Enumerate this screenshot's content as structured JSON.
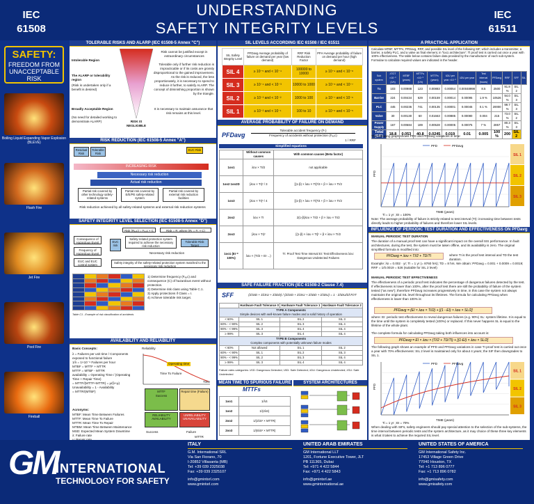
{
  "header": {
    "left": "IEC\n61508",
    "right": "IEC\n61511",
    "title1": "UNDERSTANDING",
    "title2": "SAFETY INTEGRITY LEVELS"
  },
  "safety": {
    "a": "SAFETY:",
    "b": "FREEDOM FROM UNACCEPTABLE RISK"
  },
  "photos": [
    {
      "caption": "Boiling Liquid Expanding Vapor Explosion (BLEVE)",
      "color": "#c84a10"
    },
    {
      "caption": "Flash Fire",
      "color": "#d2691e"
    },
    {
      "caption": "Jet Fire",
      "color": "#e08a20"
    },
    {
      "caption": "Pool Fire",
      "color": "#b84410"
    },
    {
      "caption": "Fireball",
      "color": "#e86a10"
    }
  ],
  "col1": {
    "alarp_title": "TOLERABLE RISKS AND ALARP (IEC 61508-5 Annex \"C\")",
    "intolerable": "Intolerable Region",
    "intolerable_txt": "Risk cannot be justified except in extraordinary circumstances",
    "alarp": "The ALARP or tolerability region",
    "alarp_sub": "(Risk is undertaken only if a benefit is desired)",
    "alarp_txt": "Tolerable only if further risk reduction is impracticable or if its costs are grossly disproportional to the gained improvement. As the risk is reduced, the less proportionately, it is necessary to spend to reduce it further, to satisfy ALARP. The concept of diminishing proportion is shown by the triangle.",
    "broad": "Broadly Acceptable Region",
    "broad_sub": "(No need for detailed working to demonstrate ALARP)",
    "broad_txt": "It is necessary to maintain assurance that risk remains at this level.",
    "negligible": "RISK IS NEGLIGIBLE",
    "rr_title": "RISK REDUCTION (IEC 61508-5 Annex \"A\")",
    "rr_residual": "Residual Risk",
    "rr_tolerable": "Tolerable Risk",
    "rr_euc": "EUC Risk",
    "rr_increasing": "INCREASING RISK",
    "rr_necessary": "Necessary risk reduction",
    "rr_actual": "Actual risk reduction",
    "rr_p1": "Partial risk covered by other technology safety-related systems",
    "rr_p2": "Partial risk covered by E/E/PE safety-related system",
    "rr_p3": "Partial risk covered by external risk reduction facilities",
    "rr_all": "Risk reduction achieved by all safety-related systems and external risk reduction systems",
    "sil_title": "SAFETY INTEGRITY LEVEL SELECTION (IEC 61508-5 Annex \"D\")",
    "sil_f1": "Risk (Rₑᵤc) = Fₑᵤc × C",
    "sil_f2": "Risk = R, where (Rₜ = Fₜ × C)",
    "sil_cons": "Consequence of Hazardous Event",
    "sil_freq": "Frequency of Hazardous Event",
    "sil_euc": "EUC risk",
    "sil_tol": "Tolerable Risk Target",
    "sil_prot": "Safety-related protection system required to achieve the necessary risk reduction",
    "sil_nec": "Necessary risk reduction",
    "sil_cs": "EUC and EUC control system",
    "sil_note": "Safety integrity of the safety-related protection system matched to the necessary risk reduction",
    "sil_steps": [
      "1) Determine frequency (Fₑᵤc) and consequence (C) of hazardous event without protection.",
      "2) Determine risk class using Table C.1.",
      "3) Apply protections if Class = I.",
      "4) Achieve tolerable risk target."
    ],
    "sil_table_note": "Table C1 - Example of risk classification of accidents",
    "avail_title": "AVAILABILITY AND RELIABILITY",
    "avail_basic": "Basic Concepts:",
    "avail_lines": [
      "λ = Failures per unit time / Components exposed to functional failure",
      "1/λ = 1×10⁻⁹ Failures per hour",
      "MTBF = MTTF + MTTR",
      "MTTF = MTBF - MTTR",
      "availability = Operating Time / (Operating Time + Repair Time)",
      "= MTTF/(MTTF+MTTR) = μ/(λ+μ)",
      "Unavailability = 1 - Availability",
      "= MTTR/(MTBF)"
    ],
    "acronyms_title": "Acronyms:",
    "acronyms": [
      "MTBF: Mean Time Between Failures",
      "MTTF: Mean Time To Failure",
      "MTTR: Mean Time To Repair",
      "MTBM: Mean Time Between Maintenance",
      "MSD: Expected Mean System Downtime",
      "λ: Failure rate",
      "μ: Repair rate"
    ],
    "rel_label": "Reliability",
    "rel_optime": "Operating time",
    "rel_tf": "Time To Failure",
    "rel_time": "Time",
    "rel_success": "Success",
    "rel_fail": "Failure",
    "rel_mttf": "MTTF",
    "rel_mttr": "MTTR",
    "rel_avail": "RELIABILITY AVAILABILITY",
    "rel_unrel": "UNRELIABILITY UNAVAILABILITY",
    "rel_repair": "Repair time (Failure)"
  },
  "col2": {
    "silt_title": "SIL LEVELS ACCORDING IEC 61508 / IEC 61511",
    "silt_head": [
      "SIL Safety Integrity Level",
      "PFDavg Average probability of failure on demand per year (low demand)",
      "RRF Risk Reduction Factor",
      "PFH Average probability of failure on demand per hour (high demand)"
    ],
    "silt_rows": [
      [
        "SIL 4",
        "≥ 10⁻⁵ and < 10⁻⁴",
        "100000 to 10000",
        "≥ 10⁻⁹ and < 10⁻⁸"
      ],
      [
        "SIL 3",
        "≥ 10⁻⁴ and < 10⁻³",
        "10000 to 1000",
        "≥ 10⁻⁸ and < 10⁻⁷"
      ],
      [
        "SIL 2",
        "≥ 10⁻³ and < 10⁻²",
        "1000 to 100",
        "≥ 10⁻⁷ and < 10⁻⁶"
      ],
      [
        "SIL 1",
        "≥ 10⁻² and < 10⁻¹",
        "100 to 10",
        "≥ 10⁻⁶ and < 10⁻⁵"
      ]
    ],
    "pfd_title": "AVERAGE PROBABILITY OF FAILURE ON DEMAND",
    "pfd_label": "PFDavg",
    "pfd_num": "Tolerable accident frequency (Fₜ)",
    "pfd_den": "Frequency of accidents without protection (Fₑᵤc)",
    "pfd_rrf": "1 / RRF",
    "pfd_simp": "Simplified equations",
    "pfd_h1": "Without common causes",
    "pfd_h2": "With common causes (Beta factor)",
    "pfd_rows": [
      [
        "1oo1",
        "λᴅᴜ × TI/2",
        "not applicable"
      ],
      [
        "1oo2 1oo2D",
        "(λᴅᴜ × TI)² / 3",
        "[(1-β) × λᴅᴜ × TI]²/3 + β × λᴅᴜ × TI/2"
      ],
      [
        "1oo3",
        "(λᴅᴜ × TI)³ / 4",
        "[(1-β) × λᴅᴜ × TI]³/4 + β × λᴅᴜ × TI/2"
      ],
      [
        "2oo2",
        "λᴅᴜ × TI",
        "2(1-β)λᴅᴜ × TI/2 + β × λᴅᴜ × TI/2"
      ],
      [
        "2oo3",
        "(λᴅᴜ × TI)²",
        "[(1-β) × λᴅᴜ × TI]² + β × λᴅᴜ × TI/2"
      ],
      [
        "1oo1 (EI = 100%)",
        "λᴅᴜ × (TI/2 + EI·...)",
        "TI: Proof Test Time Interval  EI: Test Effectiveness  λᴅᴜ: Dangerous Undetected Failures"
      ]
    ],
    "sff_title": "SAFE FAILURE FRACTION (IEC 61508-2 Clause 7.4)",
    "sff_label": "SFF",
    "sff_formula": "(ΣλSD + ΣλSU + ΣλDD) / (ΣλSD + ΣλSU + ΣλDD + ΣλDU) = 1 - ΣλDU/ΣλTOT",
    "sff_hdr": [
      "",
      "Hardware Fault Tolerance 0",
      "Hardware Fault Tolerance 1",
      "Hardware Fault Tolerance 2"
    ],
    "sff_typeA": "TYPE A Components",
    "sff_typeA_sub": "Simple devices with well-known failure modes and a solid history of operation",
    "sff_A": [
      [
        "< 60%",
        "SIL 1",
        "SIL 2",
        "SIL 3"
      ],
      [
        "60% - < 90%",
        "SIL 2",
        "SIL 3",
        "SIL 4"
      ],
      [
        "90% - < 99%",
        "SIL 3",
        "SIL 4",
        "SIL 4"
      ],
      [
        "≥ 99%",
        "SIL 3",
        "SIL 4",
        "SIL 4"
      ]
    ],
    "sff_typeB": "TYPE B Components",
    "sff_typeB_sub": "Complex components with potentially unknown failure modes",
    "sff_B": [
      [
        "< 60%",
        "Not allowed",
        "SIL 1",
        "SIL 2"
      ],
      [
        "60% - < 90%",
        "SIL 1",
        "SIL 2",
        "SIL 3"
      ],
      [
        "90% - < 99%",
        "SIL 2",
        "SIL 3",
        "SIL 4"
      ],
      [
        "≥ 99%",
        "SIL 3",
        "SIL 4",
        "SIL 4"
      ]
    ],
    "sff_cats": "Failure rates categories:  λSD: Dangerous Detected; λSD: Safe Detected; λDU: Dangerous Undetected; λSU: Safe Undetected",
    "mtts_title": "MEAN TIME TO SPURIOUS FAILURE",
    "mtts_label": "MTTFs",
    "mtts_rows": [
      [
        "1oo1",
        "1/λS"
      ],
      [
        "1oo2",
        "1/(2λS)"
      ],
      [
        "2oo2",
        "1/(2λS² × MTTR)"
      ],
      [
        "2oo3",
        "1/(6λS² × MTTR)"
      ]
    ],
    "arch_title": "SYSTEM ARCHITECTURES"
  },
  "col3": {
    "title": "A PRACTICAL APPLICATION",
    "intro": "Calculate MTBF, MTTFs, PFDavg, RRF, and possible SIL level of the following SIF, which includes a transmitter, a barrier, a safety PLC, and a valve as final element, in “loo1 architecture”. Tl proof test is carried out once a year with 100% effectiveness. The table below contains failure data provided by the manufacturer of each sub-system. Formulae to calculate required values are indicated in the header.",
    "table_head": [
      "Sub system",
      "λTOT ×10⁻⁹ (1/h)",
      "MTBF (years)",
      "MTTFs ×10⁻⁹ (1/h)",
      "MTTFs (years)",
      "λDU per year ×10⁻⁹",
      "λDU per year",
      "Test interval (hours)",
      "PFDavg",
      "RRF",
      "SFF",
      "SIL"
    ],
    "table_rows": [
      [
        "Tx",
        "103",
        "0.00988",
        "123",
        "0.00883",
        "0.00054",
        "0.00048998",
        "8.5",
        "2500",
        "91.8 %",
        "SIL 2"
      ],
      [
        "Barrier",
        "224",
        "0.00434",
        "629",
        "0.00159",
        "0.00014",
        "0.00095",
        "1.9 %",
        "10526",
        "94.0 %",
        "SIL 3"
      ],
      [
        "PLC",
        "445",
        "0.00236",
        "741",
        "0.00135",
        "0.00001",
        "0.00045",
        "0.1 %",
        "20000",
        "99.7 %",
        "SIL 3"
      ],
      [
        "Valve",
        "30",
        "0.00130",
        "60",
        "0.01663",
        "0.00885",
        "0.00080",
        "0.004",
        "215",
        "73.0 %",
        "SIL 2"
      ],
      [
        "Power Supply",
        "167",
        "0.00684",
        "189",
        "0.00528",
        "0.00005",
        "0.00075",
        "7 %",
        "2857",
        "80.3 %",
        "SIL 3"
      ],
      [
        "Total (SIF)",
        "18.8",
        "0.053",
        "40.8",
        "0.0245",
        "0.019",
        "0.01",
        "0.005",
        "100 %",
        "200",
        "SIL 2"
      ]
    ],
    "graph1_caption": "The following graph shows PFD and PFDavg variations in time:",
    "graph1_legend": [
      "PFD",
      "PFDavg"
    ],
    "graph1_sil": [
      "SIL 1",
      "SIL 2",
      "SIL 3"
    ],
    "graph1_ylabel": "PFD",
    "graph1_xlabel": "TIME (years)",
    "graph1_ti": "Ti = 1 yr ; EI = 100%",
    "note": "Note: The average probability of failure is strictly related to test interval (TI): increasing time between tests directly leads to higher probability of failures and therefore lower SIL levels.",
    "inf_title": "INFLUENCE OF PERIODIC TEST DURATION AND EFFECTIVENESS ON PFDavg (1oo1)",
    "manual_title": "MANUAL PERIODIC TEST DURATION",
    "manual_txt": "The duration of a manual proof test can have a significant impact on the overall SIS performance. In fault architectures, during the test, the system must be taken offline, and its availability is zero. The original simplified formula is modified into:",
    "manual_f": "PFDavg = λᴅᴜ × TI/2 + TD/TI",
    "manual_where": "where TI is the proof test interval and TD the test duration.",
    "example": "Example: λᴅ = 0.002 · yr; TI = 1 yr (= 8760 hrs); TD = 8 hrs. We obtain: PFDavg = 0.001 + 0.0009 = 0.0019; RRF = 1/0.0019 = 526 (suitable for SIL 2 level)",
    "eff_title": "MANUAL PERIODIC TEST EFFECTIVENESS",
    "eff_txt": "The effectiveness of a periodic proof test indicates the percentage of dangerous failures detected by the test. If effectiveness is lower than 100%, after the proof test there are still the probability of failure of the system tested (“as new”); therefore PFDavg increases progressively in time, in this case the system not always maintains the original SIL level throughout its lifetimes. The formula for calculating PFDavg when effectiveness is lower than 100% is:",
    "eff_f": "PFDavg = (EI × λᴅᴜ × TI/2) + [(1 - EI) × λᴅᴜ × SL/2]",
    "eff_where": "where: EI: periodic test effectiveness to reveal dangerous failures (e.g. 90%) SL: system lifetime. It is equal to the time until the system is completely tested (100%) or replaced. If this never happens SL is equal to the lifetime of the whole plant.",
    "complete_txt": "The complete formula for calculating PFDavg taking both influences into account is:",
    "complete_f": "PFDavg = EI × λᴅᴜ × (TI/2 + TD/TI) + [(1-EI) × λᴅᴜ × SL/2]",
    "graph2_caption": "The following graph shows an example of PFD and PFDavg variations in case TI proof test is carried out once a year with 70% effectiveness: SIL 2 level is maintained only for about 4 years; the SIF then downgrades to SIL 1.",
    "graph2_ti": "Ti = 1 yr ; EI = 70%",
    "closing": "When dealing with SIFs, safety engineers should pay special attention to the selection of the sub-systems, the time interval between periodic tests and the system architecture, as it may choice of these three key elements is what it takes to achieve the required SIL level."
  },
  "footer": {
    "logo_gm": "GM",
    "logo_int": "INTERNATIONAL",
    "logo_tag": "TECHNOLOGY FOR SAFETY",
    "offices": [
      {
        "country": "ITALY",
        "lines": [
          "G.M. International SRL",
          "Via San Fiorano, 70",
          "I-20852 Villasanta (MB)",
          "Tel: +39 039 2325038",
          "Fax: +39 039 2325107",
          "",
          "info@gmintsrl.com",
          "www.gmintsrl.com"
        ]
      },
      {
        "country": "UNITED ARAB EMIRATES",
        "lines": [
          "GM International LLT",
          "1201, Fortune Executive Tower, JLT",
          "PB 111365, Dubai",
          "Tel: +971 4 422 5844",
          "Fax: +971 4 422 5843",
          "",
          "info@gmintsrl.ae",
          "www.gmintemational.ae"
        ]
      },
      {
        "country": "UNITED STATES OF AMERICA",
        "lines": [
          "GM International Safety Inc.",
          "17453 Village Green Drive",
          "77040 Houston, TX",
          "Tel: +1 713 896 0777",
          "Fax: +1 713 896 0782",
          "",
          "info@gmisafety.com",
          "www.gmisafety.com"
        ]
      }
    ]
  },
  "colors": {
    "navy": "#0e3189",
    "yellow": "#f2c400",
    "red": "#d52c1e",
    "green": "#7bbd4a"
  }
}
